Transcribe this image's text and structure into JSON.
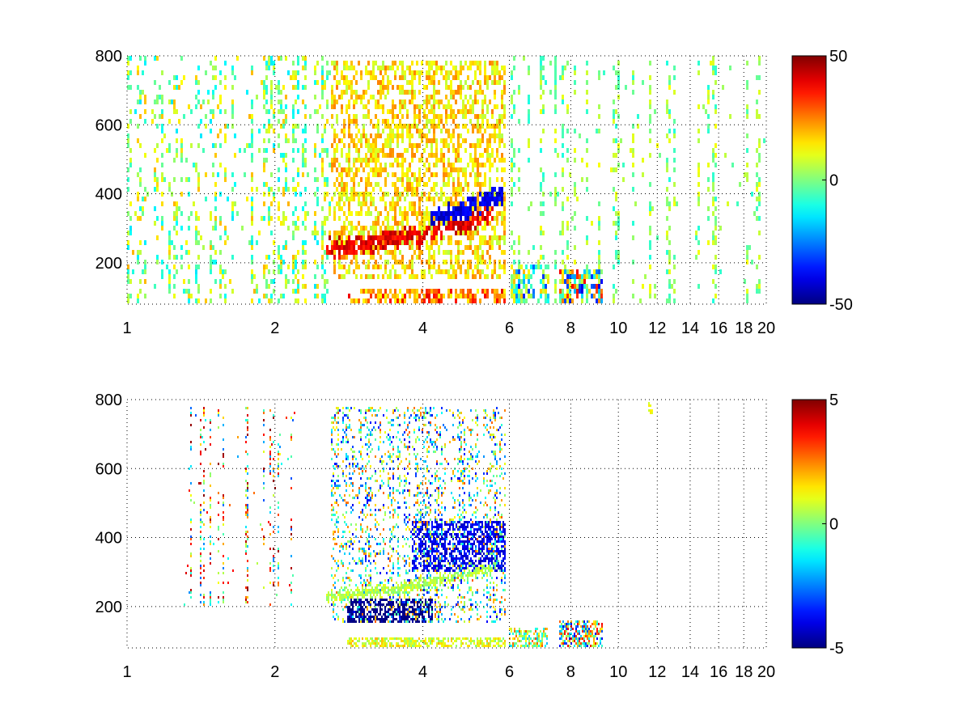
{
  "chart_data": [
    {
      "type": "heatmap",
      "title": "",
      "xlabel": "",
      "ylabel": "",
      "xlim": [
        1,
        20
      ],
      "ylim": [
        80,
        800
      ],
      "x_scale": "log",
      "xticks": [
        1,
        2,
        4,
        6,
        8,
        10,
        12,
        14,
        16,
        18,
        20
      ],
      "yticks": [
        200,
        400,
        600,
        800
      ],
      "grid": true,
      "colormap": "jet",
      "clim": [
        -50,
        50
      ],
      "colorbar_ticks": [
        -50,
        0,
        50
      ],
      "features": [
        {
          "description": "scattered noise columns",
          "x_range": [
            1,
            2.6
          ],
          "y_range": [
            80,
            800
          ],
          "value_range": [
            -15,
            20
          ]
        },
        {
          "description": "positive band rising with x",
          "points": [
            [
              2.6,
              240
            ],
            [
              3,
              255
            ],
            [
              3.5,
              265
            ],
            [
              4,
              280
            ],
            [
              4.5,
              300
            ],
            [
              5,
              320
            ],
            [
              5.5,
              350
            ]
          ],
          "value": 40
        },
        {
          "description": "negative band above positive band",
          "points": [
            [
              4.2,
              330
            ],
            [
              4.7,
              350
            ],
            [
              5.2,
              370
            ],
            [
              5.8,
              390
            ]
          ],
          "value": -40
        },
        {
          "description": "broad warm region",
          "x_range": [
            2.6,
            5.9
          ],
          "y_range": [
            150,
            780
          ],
          "value_range": [
            5,
            25
          ]
        },
        {
          "description": "low-altitude strip",
          "x_range": [
            2.8,
            5.9
          ],
          "y_range": [
            80,
            120
          ],
          "value_range": [
            10,
            40
          ]
        },
        {
          "description": "cluster",
          "x_range": [
            6,
            7.2
          ],
          "y_range": [
            80,
            200
          ],
          "value_range": [
            -35,
            20
          ]
        },
        {
          "description": "cluster",
          "x_range": [
            7.6,
            9.3
          ],
          "y_range": [
            80,
            180
          ],
          "value_range": [
            -40,
            40
          ]
        },
        {
          "description": "sparse columns",
          "x_range": [
            6,
            20
          ],
          "y_range": [
            80,
            800
          ],
          "value_range": [
            -10,
            12
          ]
        }
      ]
    },
    {
      "type": "heatmap",
      "title": "",
      "xlabel": "",
      "ylabel": "",
      "xlim": [
        1,
        20
      ],
      "ylim": [
        80,
        800
      ],
      "x_scale": "log",
      "xticks": [
        1,
        2,
        4,
        6,
        8,
        10,
        12,
        14,
        16,
        18,
        20
      ],
      "yticks": [
        200,
        400,
        600,
        800
      ],
      "grid": true,
      "colormap": "jet",
      "clim": [
        -5,
        5
      ],
      "colorbar_ticks": [
        -5,
        0,
        5
      ],
      "features": [
        {
          "description": "near-zero band rising with x",
          "points": [
            [
              2.6,
              230
            ],
            [
              3.5,
              250
            ],
            [
              4.5,
              280
            ],
            [
              5.5,
              310
            ]
          ],
          "value": 0.5
        },
        {
          "description": "strong negative region",
          "x_range": [
            2.8,
            4.2
          ],
          "y_range": [
            150,
            220
          ],
          "value": -5
        },
        {
          "description": "negative region above band",
          "x_range": [
            3.8,
            5.9
          ],
          "y_range": [
            300,
            450
          ],
          "value": -4
        },
        {
          "description": "mixed region",
          "x_range": [
            2.6,
            5.9
          ],
          "y_range": [
            150,
            780
          ],
          "value_range": [
            -4,
            3
          ]
        },
        {
          "description": "low-altitude strip",
          "x_range": [
            2.8,
            5.9
          ],
          "y_range": [
            80,
            110
          ],
          "value_range": [
            0,
            2
          ]
        },
        {
          "description": "cluster",
          "x_range": [
            6,
            7.2
          ],
          "y_range": [
            80,
            140
          ],
          "value_range": [
            -2,
            3
          ]
        },
        {
          "description": "cluster",
          "x_range": [
            7.6,
            9.3
          ],
          "y_range": [
            80,
            160
          ],
          "value_range": [
            -4,
            4
          ]
        },
        {
          "description": "sparse points",
          "x_range": [
            1.3,
            2.2
          ],
          "y_range": [
            200,
            780
          ],
          "value_range": [
            -3,
            5
          ]
        },
        {
          "description": "isolated specks",
          "x_range": [
            11.5,
            11.8
          ],
          "y_range": [
            760,
            790
          ],
          "value": 1
        }
      ]
    }
  ]
}
